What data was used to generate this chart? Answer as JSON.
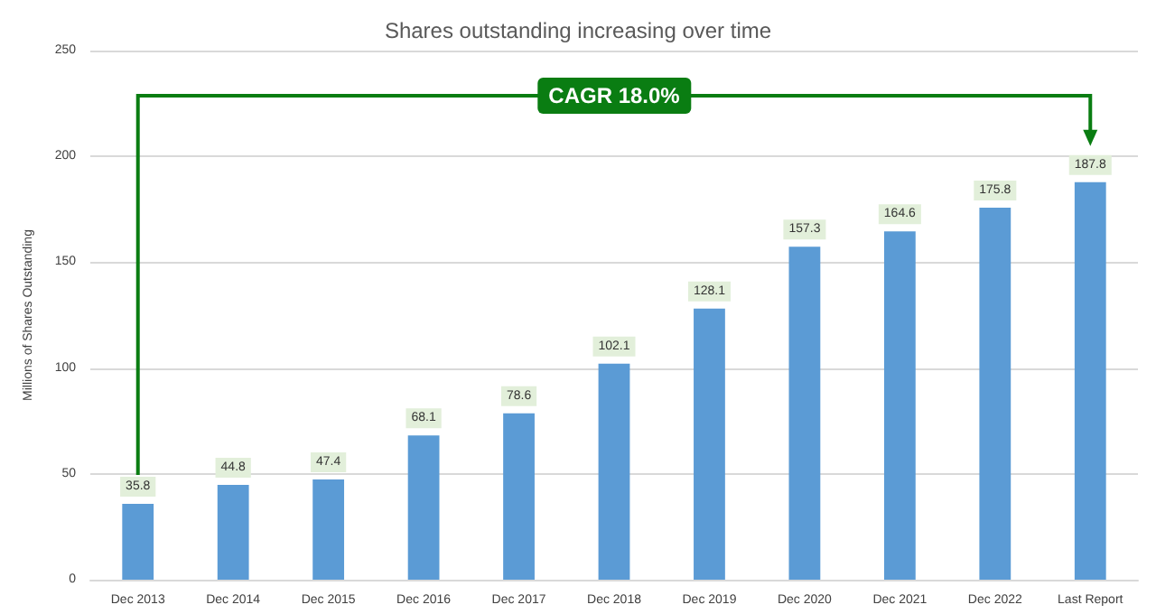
{
  "chart_data": {
    "type": "bar",
    "title": "Shares outstanding increasing over time",
    "ylabel": "Millions of Shares Outstanding",
    "categories": [
      "Dec 2013",
      "Dec 2014",
      "Dec 2015",
      "Dec 2016",
      "Dec 2017",
      "Dec 2018",
      "Dec 2019",
      "Dec 2020",
      "Dec 2021",
      "Dec 2022",
      "Last Report"
    ],
    "values": [
      35.8,
      44.8,
      47.4,
      68.1,
      78.6,
      102.1,
      128.1,
      157.3,
      164.6,
      175.8,
      187.8
    ],
    "color": "#5b9bd5",
    "ylim": [
      0,
      250
    ],
    "yticks": [
      0,
      50,
      100,
      150,
      200,
      250
    ],
    "grid": "y",
    "data_labels": true,
    "annotations": [
      "CAGR 18.0%"
    ]
  }
}
